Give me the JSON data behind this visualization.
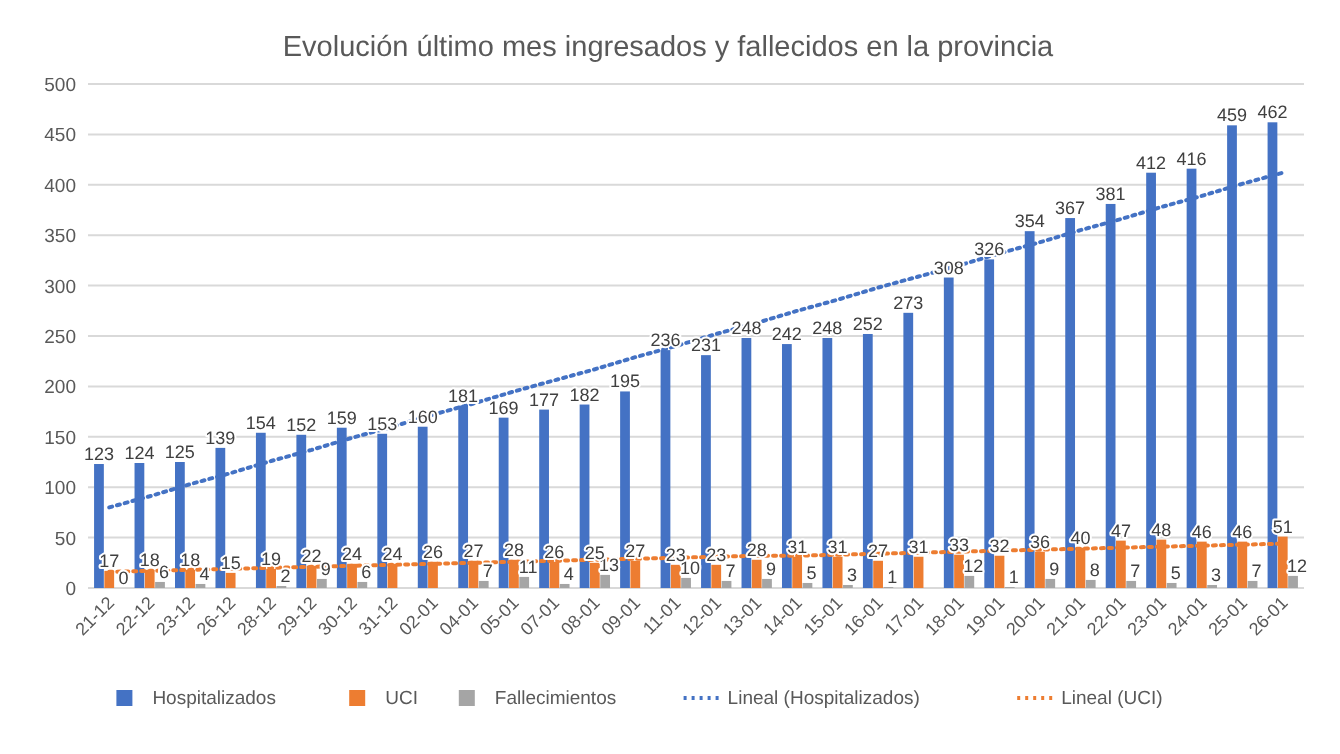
{
  "chart_data": {
    "type": "bar",
    "title": "Evolución último mes ingresados y fallecidos en la provincia",
    "categories": [
      "21-12",
      "22-12",
      "23-12",
      "26-12",
      "28-12",
      "29-12",
      "30-12",
      "31-12",
      "02-01",
      "04-01",
      "05-01",
      "07-01",
      "08-01",
      "09-01",
      "11-01",
      "12-01",
      "13-01",
      "14-01",
      "15-01",
      "16-01",
      "17-01",
      "18-01",
      "19-01",
      "20-01",
      "21-01",
      "22-01",
      "23-01",
      "24-01",
      "25-01",
      "26-01"
    ],
    "series": [
      {
        "name": "Hospitalizados",
        "color": "#4472c4",
        "values": [
          123,
          124,
          125,
          139,
          154,
          152,
          159,
          153,
          160,
          181,
          169,
          177,
          182,
          195,
          236,
          231,
          248,
          242,
          248,
          252,
          273,
          308,
          326,
          354,
          367,
          381,
          412,
          416,
          459,
          462
        ],
        "value_labels": [
          "123",
          "124",
          "125",
          "139",
          "154",
          "152",
          "159",
          "153",
          "160",
          "181",
          "169",
          "177",
          "182",
          "195",
          "236",
          "231",
          "248",
          "242",
          "248",
          "252",
          "273",
          "308",
          "326",
          "354",
          "367",
          "381",
          "412",
          "416",
          "459",
          "462"
        ]
      },
      {
        "name": "UCI",
        "color": "#ed7d31",
        "values": [
          17,
          18,
          18,
          15,
          19,
          22,
          24,
          24,
          26,
          27,
          28,
          26,
          25,
          27,
          23,
          23,
          28,
          31,
          31,
          27,
          31,
          33,
          32,
          36,
          40,
          47,
          48,
          46,
          46,
          51
        ],
        "value_labels": [
          "17",
          "18",
          "18",
          "15",
          "19",
          "22",
          "24",
          "24",
          "26",
          "27",
          "28",
          "26",
          "25",
          "27",
          "23",
          "23",
          "28",
          "31",
          "31",
          "27",
          "31",
          "33",
          "32",
          "36",
          "40",
          "47",
          "48",
          "46",
          "46",
          "51"
        ]
      },
      {
        "name": "Fallecimientos",
        "color": "#a5a5a5",
        "values": [
          0,
          6,
          4,
          null,
          2,
          9,
          6,
          null,
          null,
          7,
          11,
          4,
          13,
          null,
          10,
          7,
          9,
          5,
          3,
          1,
          null,
          12,
          1,
          9,
          8,
          7,
          5,
          3,
          7,
          12
        ],
        "value_labels": [
          "0",
          "6",
          "4",
          null,
          "2",
          "9",
          "6",
          null,
          null,
          "7",
          "11",
          "4",
          "13",
          null,
          "10",
          "7",
          "9",
          "5",
          "3",
          "1",
          null,
          "12",
          "1",
          "9",
          "8",
          "7",
          "5",
          "3",
          "7",
          "12"
        ]
      },
      {
        "name": "Lineal (Hospitalizados)",
        "type": "line",
        "line_style": "dotted",
        "color": "#4472c4",
        "values": [
          80,
          91,
          103,
          114,
          126,
          137,
          149,
          160,
          172,
          183,
          195,
          206,
          217,
          229,
          240,
          252,
          263,
          275,
          286,
          298,
          309,
          320,
          332,
          343,
          355,
          366,
          378,
          389,
          401,
          412
        ]
      },
      {
        "name": "Lineal (UCI)",
        "type": "line",
        "line_style": "dotted",
        "color": "#ed7d31",
        "values": [
          16,
          17,
          18,
          19,
          20,
          21,
          22,
          23,
          24,
          25,
          26,
          27,
          28,
          29,
          30,
          31,
          32,
          32,
          33,
          34,
          35,
          36,
          37,
          38,
          39,
          40,
          41,
          42,
          43,
          44
        ]
      }
    ],
    "ylim": [
      0,
      500
    ],
    "yticks": [
      0,
      50,
      100,
      150,
      200,
      250,
      300,
      350,
      400,
      450,
      500
    ],
    "grid": "y",
    "legend": "bottom"
  }
}
